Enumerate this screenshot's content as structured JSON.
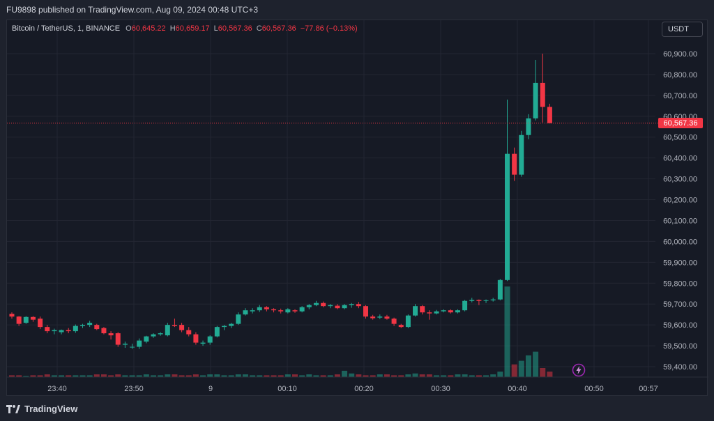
{
  "header": {
    "published": "FU9898 published on TradingView.com, Aug 09, 2024 00:48 UTC+3"
  },
  "legend": {
    "symbol": "Bitcoin / TetherUS, 1, BINANCE",
    "o_label": "O",
    "o_value": "60,645.22",
    "h_label": "H",
    "h_value": "60,659.17",
    "l_label": "L",
    "l_value": "60,567.36",
    "c_label": "C",
    "c_value": "60,567.36",
    "change": "−77.86 (−0.13%)"
  },
  "currency_button": "USDT",
  "last_price_tag": "60,567.36",
  "footer": {
    "brand": "TradingView"
  },
  "colors": {
    "up": "#22ab94",
    "down": "#f23645",
    "background": "#161a25",
    "page": "#1e222d",
    "grid": "#232632"
  },
  "chart_data": {
    "type": "candlestick",
    "symbol": "Bitcoin / TetherUS",
    "timeframe": "1",
    "exchange": "BINANCE",
    "y_ticks": [
      59400,
      59500,
      59600,
      59700,
      59800,
      59900,
      60000,
      60100,
      60200,
      60300,
      60400,
      60500,
      60600,
      60700,
      60800,
      60900
    ],
    "y_tick_labels": [
      "59,400.00",
      "59,500.00",
      "59,600.00",
      "59,700.00",
      "59,800.00",
      "59,900.00",
      "60,000.00",
      "60,100.00",
      "60,200.00",
      "60,300.00",
      "60,400.00",
      "60,500.00",
      "60,600.00",
      "60,700.00",
      "60,800.00",
      "60,900.00"
    ],
    "x_tick_labels": [
      "23:40",
      "23:50",
      "9",
      "00:10",
      "00:20",
      "00:30",
      "00:40",
      "00:50",
      "00:57"
    ],
    "last_price": 60567.36,
    "candles": [
      [
        59653,
        59660,
        59630,
        59640
      ],
      [
        59640,
        59642,
        59595,
        59605
      ],
      [
        59610,
        59642,
        59605,
        59638
      ],
      [
        59638,
        59642,
        59615,
        59625
      ],
      [
        59630,
        59640,
        59580,
        59590
      ],
      [
        59590,
        59600,
        59560,
        59570
      ],
      [
        59570,
        59582,
        59555,
        59575
      ],
      [
        59565,
        59578,
        59555,
        59575
      ],
      [
        59575,
        59585,
        59560,
        59570
      ],
      [
        59570,
        59602,
        59562,
        59595
      ],
      [
        59595,
        59605,
        59585,
        59600
      ],
      [
        59600,
        59620,
        59590,
        59610
      ],
      [
        59600,
        59605,
        59575,
        59580
      ],
      [
        59585,
        59590,
        59555,
        59560
      ],
      [
        59560,
        59570,
        59530,
        59550
      ],
      [
        59560,
        59565,
        59495,
        59505
      ],
      [
        59505,
        59520,
        59490,
        59510
      ],
      [
        59495,
        59510,
        59485,
        59495
      ],
      [
        59495,
        59535,
        59485,
        59525
      ],
      [
        59520,
        59548,
        59512,
        59545
      ],
      [
        59545,
        59560,
        59538,
        59555
      ],
      [
        59555,
        59565,
        59548,
        59560
      ],
      [
        59550,
        59610,
        59545,
        59600
      ],
      [
        59600,
        59630,
        59590,
        59595
      ],
      [
        59600,
        59610,
        59565,
        59575
      ],
      [
        59575,
        59590,
        59545,
        59555
      ],
      [
        59555,
        59565,
        59505,
        59515
      ],
      [
        59510,
        59525,
        59500,
        59515
      ],
      [
        59515,
        59550,
        59505,
        59545
      ],
      [
        59545,
        59595,
        59540,
        59590
      ],
      [
        59590,
        59600,
        59575,
        59595
      ],
      [
        59595,
        59610,
        59585,
        59605
      ],
      [
        59605,
        59660,
        59600,
        59650
      ],
      [
        59650,
        59680,
        59645,
        59670
      ],
      [
        59665,
        59680,
        59655,
        59670
      ],
      [
        59670,
        59695,
        59662,
        59685
      ],
      [
        59685,
        59690,
        59665,
        59675
      ],
      [
        59675,
        59680,
        59660,
        59670
      ],
      [
        59670,
        59678,
        59655,
        59665
      ],
      [
        59660,
        59680,
        59655,
        59675
      ],
      [
        59670,
        59675,
        59658,
        59665
      ],
      [
        59665,
        59690,
        59660,
        59685
      ],
      [
        59685,
        59700,
        59675,
        59695
      ],
      [
        59695,
        59715,
        59690,
        59705
      ],
      [
        59705,
        59712,
        59685,
        59690
      ],
      [
        59690,
        59700,
        59680,
        59695
      ],
      [
        59692,
        59700,
        59675,
        59680
      ],
      [
        59680,
        59700,
        59675,
        59695
      ],
      [
        59695,
        59705,
        59682,
        59700
      ],
      [
        59700,
        59710,
        59680,
        59690
      ],
      [
        59690,
        59695,
        59630,
        59640
      ],
      [
        59640,
        59648,
        59625,
        59632
      ],
      [
        59635,
        59650,
        59628,
        59640
      ],
      [
        59640,
        59648,
        59625,
        59630
      ],
      [
        59630,
        59635,
        59595,
        59605
      ],
      [
        59600,
        59605,
        59585,
        59590
      ],
      [
        59590,
        59650,
        59585,
        59645
      ],
      [
        59645,
        59700,
        59640,
        59690
      ],
      [
        59690,
        59695,
        59650,
        59660
      ],
      [
        59660,
        59670,
        59625,
        59655
      ],
      [
        59655,
        59672,
        59650,
        59665
      ],
      [
        59665,
        59675,
        59660,
        59670
      ],
      [
        59670,
        59675,
        59655,
        59660
      ],
      [
        59660,
        59675,
        59655,
        59670
      ],
      [
        59670,
        59720,
        59665,
        59715
      ],
      [
        59715,
        59730,
        59708,
        59720
      ],
      [
        59720,
        59722,
        59695,
        59715
      ],
      [
        59715,
        59722,
        59705,
        59718
      ],
      [
        59718,
        59730,
        59712,
        59722
      ],
      [
        59722,
        59820,
        59718,
        59815
      ],
      [
        59815,
        60680,
        59810,
        60420
      ],
      [
        60420,
        60450,
        60290,
        60320
      ],
      [
        60320,
        60530,
        60310,
        60510
      ],
      [
        60510,
        60610,
        60490,
        60590
      ],
      [
        60590,
        60870,
        60580,
        60760
      ],
      [
        60760,
        60900,
        60570,
        60645
      ],
      [
        60645,
        60660,
        60567,
        60567
      ]
    ],
    "volumes": [
      2,
      2,
      1,
      2,
      2,
      3,
      2,
      2,
      2,
      2,
      2,
      2,
      3,
      3,
      2,
      3,
      2,
      2,
      2,
      3,
      2,
      2,
      3,
      3,
      2,
      2,
      3,
      2,
      3,
      3,
      2,
      2,
      3,
      3,
      2,
      2,
      2,
      2,
      2,
      3,
      3,
      2,
      3,
      2,
      2,
      2,
      3,
      7,
      4,
      3,
      2,
      2,
      3,
      3,
      2,
      2,
      3,
      4,
      3,
      3,
      2,
      2,
      2,
      3,
      3,
      2,
      2,
      2,
      3,
      6,
      100,
      14,
      18,
      24,
      28,
      10,
      6
    ]
  }
}
